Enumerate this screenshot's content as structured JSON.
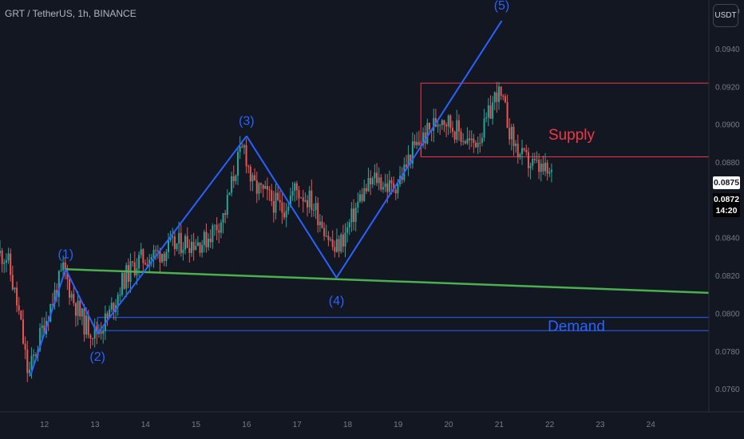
{
  "header": {
    "title": "GRT / TetherUS, 1h, BINANCE"
  },
  "toolbar": {
    "currency_label": "USDT"
  },
  "colors": {
    "background": "#131722",
    "up": "#26a69a",
    "down": "#ef5350",
    "wave": "#2962ff",
    "trend": "#4caf50",
    "supply": "#f23645",
    "demand": "#2962ff",
    "axis_text": "#787b86"
  },
  "price_labels": {
    "last": "0.0875",
    "close": "0.0872",
    "countdown": "14:20"
  },
  "chart_data": {
    "type": "candlestick",
    "title": "GRT / TetherUS, 1h, BINANCE",
    "x_ticks": [
      "12",
      "13",
      "14",
      "15",
      "16",
      "17",
      "18",
      "19",
      "20",
      "21",
      "22",
      "23",
      "24"
    ],
    "y_ticks": [
      "0.0760",
      "0.0780",
      "0.0800",
      "0.0820",
      "0.0840",
      "0.0880",
      "0.0900",
      "0.0920",
      "0.0940",
      "0.0960"
    ],
    "ylim": [
      0.0748,
      0.0966
    ],
    "xlim": [
      11.12,
      25.15
    ],
    "grid": false,
    "waves": [
      {
        "label": "(1)",
        "day": 12.42,
        "price": 0.08235
      },
      {
        "label": "(2)",
        "day": 13.05,
        "price": 0.07895
      },
      {
        "label": "(3)",
        "day": 16.0,
        "price": 0.0894
      },
      {
        "label": "(4)",
        "day": 17.78,
        "price": 0.0819
      },
      {
        "label": "(5)",
        "day": 21.05,
        "price": 0.0955
      }
    ],
    "wave_start": {
      "day": 11.72,
      "price": 0.0767
    },
    "trendline": {
      "start": {
        "day": 12.42,
        "price": 0.08235
      },
      "end": {
        "day": 25.15,
        "price": 0.0811
      }
    },
    "zones": [
      {
        "label": "Supply",
        "day_start": 19.45,
        "day_end": 25.15,
        "price_top": 0.0922,
        "price_bottom": 0.0883
      },
      {
        "label": "Demand",
        "day_start": 13.05,
        "day_end": 25.15,
        "price_top": 0.0798,
        "price_bottom": 0.0791
      }
    ],
    "candles_path": [
      [
        11.12,
        0.0832
      ],
      [
        11.3,
        0.083
      ],
      [
        11.55,
        0.0798
      ],
      [
        11.72,
        0.0767
      ],
      [
        12.0,
        0.0792
      ],
      [
        12.42,
        0.08235
      ],
      [
        12.6,
        0.0808
      ],
      [
        12.82,
        0.0795
      ],
      [
        13.05,
        0.07895
      ],
      [
        13.3,
        0.0798
      ],
      [
        13.6,
        0.0818
      ],
      [
        13.9,
        0.0828
      ],
      [
        14.3,
        0.0832
      ],
      [
        14.8,
        0.0838
      ],
      [
        15.2,
        0.0838
      ],
      [
        15.6,
        0.0852
      ],
      [
        15.85,
        0.088
      ],
      [
        16.0,
        0.0888
      ],
      [
        16.15,
        0.0868
      ],
      [
        16.45,
        0.0862
      ],
      [
        16.75,
        0.0855
      ],
      [
        17.0,
        0.0866
      ],
      [
        17.3,
        0.086
      ],
      [
        17.55,
        0.0848
      ],
      [
        17.78,
        0.0833
      ],
      [
        18.0,
        0.0842
      ],
      [
        18.3,
        0.0862
      ],
      [
        18.6,
        0.0872
      ],
      [
        18.9,
        0.0866
      ],
      [
        19.1,
        0.0872
      ],
      [
        19.3,
        0.0885
      ],
      [
        19.6,
        0.0895
      ],
      [
        19.9,
        0.0905
      ],
      [
        20.2,
        0.0897
      ],
      [
        20.5,
        0.0889
      ],
      [
        20.75,
        0.0898
      ],
      [
        21.0,
        0.0918
      ],
      [
        21.15,
        0.0908
      ],
      [
        21.3,
        0.0892
      ],
      [
        21.5,
        0.0882
      ],
      [
        21.75,
        0.0878
      ],
      [
        22.05,
        0.0873
      ]
    ],
    "annotations": [
      "Supply",
      "Demand"
    ]
  }
}
